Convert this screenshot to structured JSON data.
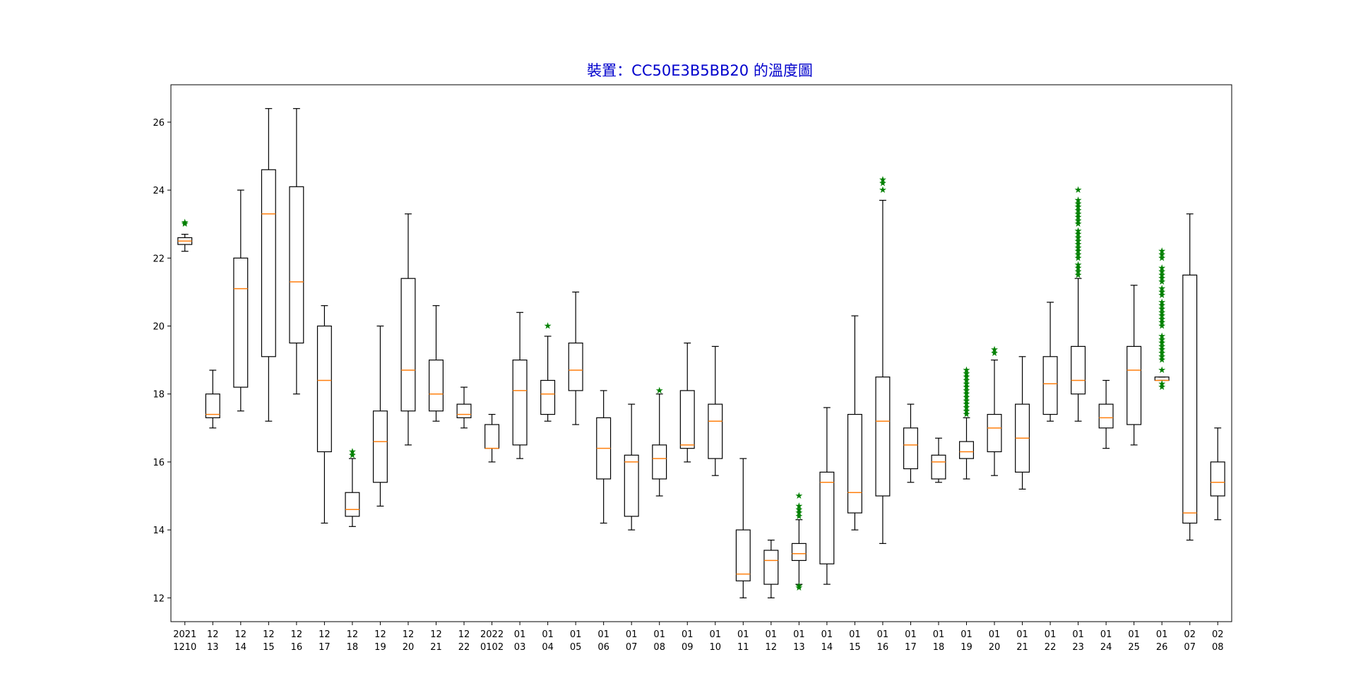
{
  "chart_data": {
    "type": "boxplot",
    "title": "裝置：CC50E3B5BB20 的溫度圖",
    "xlabel": "",
    "ylabel": "",
    "ylim": [
      11.3,
      27.1
    ],
    "yticks": [
      12,
      14,
      16,
      18,
      20,
      22,
      24,
      26
    ],
    "grid": false,
    "colors": {
      "box": "#000000",
      "median": "#ff7f0e",
      "flier": "#008000",
      "title": "#0000cc"
    },
    "categories": [
      [
        "2021",
        "1210"
      ],
      [
        "12",
        "13"
      ],
      [
        "12",
        "14"
      ],
      [
        "12",
        "15"
      ],
      [
        "12",
        "16"
      ],
      [
        "12",
        "17"
      ],
      [
        "12",
        "18"
      ],
      [
        "12",
        "19"
      ],
      [
        "12",
        "20"
      ],
      [
        "12",
        "21"
      ],
      [
        "12",
        "22"
      ],
      [
        "2022",
        "0102"
      ],
      [
        "01",
        "03"
      ],
      [
        "01",
        "04"
      ],
      [
        "01",
        "05"
      ],
      [
        "01",
        "06"
      ],
      [
        "01",
        "07"
      ],
      [
        "01",
        "08"
      ],
      [
        "01",
        "09"
      ],
      [
        "01",
        "10"
      ],
      [
        "01",
        "11"
      ],
      [
        "01",
        "12"
      ],
      [
        "01",
        "13"
      ],
      [
        "01",
        "14"
      ],
      [
        "01",
        "15"
      ],
      [
        "01",
        "16"
      ],
      [
        "01",
        "17"
      ],
      [
        "01",
        "18"
      ],
      [
        "01",
        "19"
      ],
      [
        "01",
        "20"
      ],
      [
        "01",
        "21"
      ],
      [
        "01",
        "22"
      ],
      [
        "01",
        "23"
      ],
      [
        "01",
        "24"
      ],
      [
        "01",
        "25"
      ],
      [
        "01",
        "26"
      ],
      [
        "02",
        "07"
      ],
      [
        "02",
        "08"
      ]
    ],
    "boxes": [
      {
        "whislo": 22.2,
        "q1": 22.4,
        "med": 22.5,
        "q3": 22.6,
        "whishi": 22.7,
        "fliers": [
          23.0,
          23.05
        ]
      },
      {
        "whislo": 17.0,
        "q1": 17.3,
        "med": 17.4,
        "q3": 18.0,
        "whishi": 18.7,
        "fliers": []
      },
      {
        "whislo": 17.5,
        "q1": 18.2,
        "med": 21.1,
        "q3": 22.0,
        "whishi": 24.0,
        "fliers": []
      },
      {
        "whislo": 17.2,
        "q1": 19.1,
        "med": 23.3,
        "q3": 24.6,
        "whishi": 26.4,
        "fliers": []
      },
      {
        "whislo": 18.0,
        "q1": 19.5,
        "med": 21.3,
        "q3": 24.1,
        "whishi": 26.4,
        "fliers": []
      },
      {
        "whislo": 14.2,
        "q1": 16.3,
        "med": 18.4,
        "q3": 20.0,
        "whishi": 20.6,
        "fliers": []
      },
      {
        "whislo": 14.1,
        "q1": 14.4,
        "med": 14.6,
        "q3": 15.1,
        "whishi": 16.1,
        "fliers": [
          16.2,
          16.3
        ]
      },
      {
        "whislo": 14.7,
        "q1": 15.4,
        "med": 16.6,
        "q3": 17.5,
        "whishi": 20.0,
        "fliers": []
      },
      {
        "whislo": 16.5,
        "q1": 17.5,
        "med": 18.7,
        "q3": 21.4,
        "whishi": 23.3,
        "fliers": []
      },
      {
        "whislo": 17.2,
        "q1": 17.5,
        "med": 18.0,
        "q3": 19.0,
        "whishi": 20.6,
        "fliers": []
      },
      {
        "whislo": 17.0,
        "q1": 17.3,
        "med": 17.4,
        "q3": 17.7,
        "whishi": 18.2,
        "fliers": []
      },
      {
        "whislo": 16.0,
        "q1": 16.4,
        "med": 16.4,
        "q3": 17.1,
        "whishi": 17.4,
        "fliers": []
      },
      {
        "whislo": 16.1,
        "q1": 16.5,
        "med": 18.1,
        "q3": 19.0,
        "whishi": 20.4,
        "fliers": []
      },
      {
        "whislo": 17.2,
        "q1": 17.4,
        "med": 18.0,
        "q3": 18.4,
        "whishi": 19.7,
        "fliers": [
          20.0
        ]
      },
      {
        "whislo": 17.1,
        "q1": 18.1,
        "med": 18.7,
        "q3": 19.5,
        "whishi": 21.0,
        "fliers": []
      },
      {
        "whislo": 14.2,
        "q1": 15.5,
        "med": 16.4,
        "q3": 17.3,
        "whishi": 18.1,
        "fliers": []
      },
      {
        "whislo": 14.0,
        "q1": 14.4,
        "med": 16.0,
        "q3": 16.2,
        "whishi": 17.7,
        "fliers": []
      },
      {
        "whislo": 15.0,
        "q1": 15.5,
        "med": 16.1,
        "q3": 16.5,
        "whishi": 18.0,
        "fliers": [
          18.1
        ]
      },
      {
        "whislo": 16.0,
        "q1": 16.4,
        "med": 16.5,
        "q3": 18.1,
        "whishi": 19.5,
        "fliers": []
      },
      {
        "whislo": 15.6,
        "q1": 16.1,
        "med": 17.2,
        "q3": 17.7,
        "whishi": 19.4,
        "fliers": []
      },
      {
        "whislo": 12.0,
        "q1": 12.5,
        "med": 12.7,
        "q3": 14.0,
        "whishi": 16.1,
        "fliers": []
      },
      {
        "whislo": 12.0,
        "q1": 12.4,
        "med": 13.1,
        "q3": 13.4,
        "whishi": 13.7,
        "fliers": []
      },
      {
        "whislo": 12.4,
        "q1": 13.1,
        "med": 13.3,
        "q3": 13.6,
        "whishi": 14.3,
        "fliers": [
          14.4,
          14.5,
          14.6,
          14.7,
          15.0,
          12.3,
          12.35
        ]
      },
      {
        "whislo": 12.4,
        "q1": 13.0,
        "med": 15.4,
        "q3": 15.7,
        "whishi": 17.6,
        "fliers": []
      },
      {
        "whislo": 14.0,
        "q1": 14.5,
        "med": 15.1,
        "q3": 17.4,
        "whishi": 20.3,
        "fliers": []
      },
      {
        "whislo": 13.6,
        "q1": 15.0,
        "med": 17.2,
        "q3": 18.5,
        "whishi": 23.7,
        "fliers": [
          24.0,
          24.2,
          24.3
        ]
      },
      {
        "whislo": 15.4,
        "q1": 15.8,
        "med": 16.5,
        "q3": 17.0,
        "whishi": 17.7,
        "fliers": []
      },
      {
        "whislo": 15.4,
        "q1": 15.5,
        "med": 16.0,
        "q3": 16.2,
        "whishi": 16.7,
        "fliers": []
      },
      {
        "whislo": 15.5,
        "q1": 16.1,
        "med": 16.3,
        "q3": 16.6,
        "whishi": 17.3,
        "fliers": [
          17.4,
          17.5,
          17.6,
          17.7,
          17.8,
          17.9,
          18.0,
          18.1,
          18.2,
          18.3,
          18.4,
          18.5,
          18.6,
          18.7
        ]
      },
      {
        "whislo": 15.6,
        "q1": 16.3,
        "med": 17.0,
        "q3": 17.4,
        "whishi": 19.0,
        "fliers": [
          19.2,
          19.3
        ]
      },
      {
        "whislo": 15.2,
        "q1": 15.7,
        "med": 16.7,
        "q3": 17.7,
        "whishi": 19.1,
        "fliers": []
      },
      {
        "whislo": 17.2,
        "q1": 17.4,
        "med": 18.3,
        "q3": 19.1,
        "whishi": 20.7,
        "fliers": []
      },
      {
        "whislo": 17.2,
        "q1": 18.0,
        "med": 18.4,
        "q3": 19.4,
        "whishi": 21.4,
        "fliers": [
          21.5,
          21.6,
          21.7,
          21.8,
          22.0,
          22.1,
          22.2,
          22.3,
          22.4,
          22.5,
          22.6,
          22.7,
          22.8,
          23.0,
          23.1,
          23.2,
          23.3,
          23.4,
          23.5,
          23.6,
          23.7,
          24.0
        ]
      },
      {
        "whislo": 16.4,
        "q1": 17.0,
        "med": 17.3,
        "q3": 17.7,
        "whishi": 18.4,
        "fliers": []
      },
      {
        "whislo": 16.5,
        "q1": 17.1,
        "med": 18.7,
        "q3": 19.4,
        "whishi": 21.2,
        "fliers": []
      },
      {
        "whislo": 18.4,
        "q1": 18.4,
        "med": 18.4,
        "q3": 18.5,
        "whishi": 18.5,
        "fliers": [
          18.2,
          18.3,
          18.7,
          19.0,
          19.1,
          19.2,
          19.3,
          19.4,
          19.5,
          19.6,
          19.7,
          20.0,
          20.1,
          20.2,
          20.3,
          20.4,
          20.5,
          20.6,
          20.7,
          20.9,
          21.0,
          21.1,
          21.3,
          21.4,
          21.5,
          21.6,
          21.7,
          22.0,
          22.1,
          22.2
        ]
      },
      {
        "whislo": 13.7,
        "q1": 14.2,
        "med": 14.5,
        "q3": 21.5,
        "whishi": 23.3,
        "fliers": []
      },
      {
        "whislo": 14.3,
        "q1": 15.0,
        "med": 15.4,
        "q3": 16.0,
        "whishi": 17.0,
        "fliers": []
      }
    ]
  }
}
